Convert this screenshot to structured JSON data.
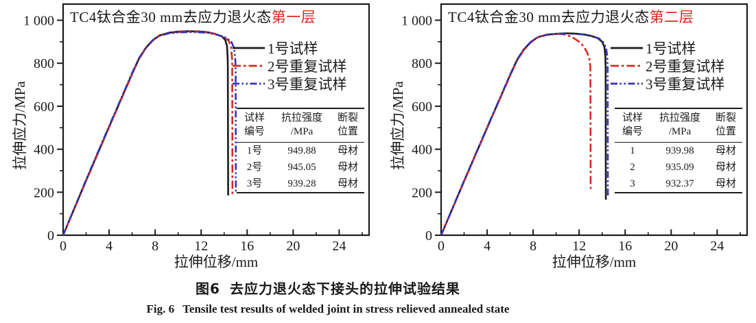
{
  "colors": {
    "axis_black": "#1a1a1a",
    "series_black": "#1a1a1a",
    "series_red": "#d8281e",
    "series_blue": "#3232b6",
    "title_accent_red": "#d8281e"
  },
  "charts": [
    {
      "title_black": "TC4钛合金30 mm去应力退火态",
      "title_red": "第一层",
      "xlabel": "拉伸位移/mm",
      "ylabel": "拉伸应力/MPa",
      "table": {
        "header": {
          "col_sample_l1": "试样",
          "col_sample_l2": "编号",
          "col_strength_l1": "抗拉强度",
          "col_strength_l2": "/MPa",
          "col_fracture_l1": "断裂",
          "col_fracture_l2": "位置"
        },
        "rows": [
          {
            "id": "1号",
            "strength": "949.88",
            "location": "母材"
          },
          {
            "id": "2号",
            "strength": "945.05",
            "location": "母材"
          },
          {
            "id": "3号",
            "strength": "939.28",
            "location": "母材"
          }
        ]
      }
    },
    {
      "title_black": "TC4钛合金30 mm去应力退火态",
      "title_red": "第二层",
      "xlabel": "拉伸位移/mm",
      "ylabel": "拉伸应力/MPa",
      "table": {
        "header": {
          "col_sample_l1": "试样",
          "col_sample_l2": "编号",
          "col_strength_l1": "抗拉强度",
          "col_strength_l2": "/MPa",
          "col_fracture_l1": "断裂",
          "col_fracture_l2": "位置"
        },
        "rows": [
          {
            "id": "1",
            "strength": "939.98",
            "location": "母材"
          },
          {
            "id": "2",
            "strength": "935.09",
            "location": "母材"
          },
          {
            "id": "3",
            "strength": "932.37",
            "location": "母材"
          }
        ]
      }
    }
  ],
  "chart_data": [
    {
      "type": "line",
      "title": "TC4钛合金30 mm去应力退火态第一层",
      "xlabel": "拉伸位移/mm",
      "ylabel": "拉伸应力/MPa",
      "xlim": [
        0,
        26.6
      ],
      "ylim": [
        0,
        1075
      ],
      "xticks": [
        0,
        4,
        8,
        12,
        16,
        20,
        24
      ],
      "yticks": [
        0,
        200,
        400,
        600,
        800,
        1000
      ],
      "ytick_labels": [
        "0",
        "200",
        "400",
        "600",
        "800",
        "1 000"
      ],
      "x_minor_step": 2,
      "y_minor_step": 100,
      "grid": false,
      "legend_position": "upper-right-inside",
      "series": [
        {
          "name": "1号试样",
          "color": "#1a1a1a",
          "dash": "solid",
          "points": [
            [
              0,
              0
            ],
            [
              2,
              255
            ],
            [
              4,
              505
            ],
            [
              5,
              628
            ],
            [
              6,
              752
            ],
            [
              6.6,
              822
            ],
            [
              7.2,
              872
            ],
            [
              7.8,
              908
            ],
            [
              8.4,
              930
            ],
            [
              9.2,
              942
            ],
            [
              10,
              947
            ],
            [
              10.9,
              949
            ],
            [
              11.8,
              948
            ],
            [
              12.6,
              944
            ],
            [
              13.2,
              937
            ],
            [
              13.8,
              925
            ],
            [
              14.1,
              908
            ],
            [
              14.25,
              880
            ],
            [
              14.3,
              830
            ],
            [
              14.32,
              790
            ],
            [
              14.35,
              185
            ]
          ]
        },
        {
          "name": "2号重复试样",
          "color": "#d8281e",
          "dash": "dash-dot",
          "points": [
            [
              0,
              0
            ],
            [
              2,
              252
            ],
            [
              4,
              502
            ],
            [
              5,
              625
            ],
            [
              6,
              749
            ],
            [
              6.6,
              820
            ],
            [
              7.2,
              870
            ],
            [
              7.8,
              906
            ],
            [
              8.4,
              928
            ],
            [
              9.2,
              940
            ],
            [
              10,
              945
            ],
            [
              10.9,
              947
            ],
            [
              11.8,
              946
            ],
            [
              12.6,
              943
            ],
            [
              13.2,
              936
            ],
            [
              13.9,
              924
            ],
            [
              14.4,
              905
            ],
            [
              14.6,
              875
            ],
            [
              14.68,
              830
            ],
            [
              14.7,
              790
            ],
            [
              14.72,
              190
            ]
          ]
        },
        {
          "name": "3号重复试样",
          "color": "#3232b6",
          "dash": "dash-dot-dot",
          "points": [
            [
              0,
              0
            ],
            [
              2,
              258
            ],
            [
              4,
              508
            ],
            [
              5,
              631
            ],
            [
              6,
              755
            ],
            [
              6.6,
              824
            ],
            [
              7.2,
              873
            ],
            [
              7.8,
              908
            ],
            [
              8.4,
              928
            ],
            [
              9.2,
              939
            ],
            [
              10,
              943
            ],
            [
              10.9,
              945
            ],
            [
              11.8,
              944
            ],
            [
              12.6,
              941
            ],
            [
              13.2,
              935
            ],
            [
              14,
              923
            ],
            [
              14.6,
              903
            ],
            [
              14.85,
              872
            ],
            [
              14.95,
              830
            ],
            [
              15.0,
              785
            ],
            [
              15.02,
              195
            ]
          ]
        }
      ],
      "table_values": {
        "1号": 949.88,
        "2号": 945.05,
        "3号": 939.28,
        "fracture_location": "母材"
      }
    },
    {
      "type": "line",
      "title": "TC4钛合金30 mm去应力退火态第二层",
      "xlabel": "拉伸位移/mm",
      "ylabel": "拉伸应力/MPa",
      "xlim": [
        0,
        26.6
      ],
      "ylim": [
        0,
        1075
      ],
      "xticks": [
        0,
        4,
        8,
        12,
        16,
        20,
        24
      ],
      "yticks": [
        0,
        200,
        400,
        600,
        800,
        1000
      ],
      "ytick_labels": [
        "0",
        "200",
        "400",
        "600",
        "800",
        "1 000"
      ],
      "x_minor_step": 2,
      "y_minor_step": 100,
      "grid": false,
      "legend_position": "upper-right-inside",
      "series": [
        {
          "name": "1号试样",
          "color": "#1a1a1a",
          "dash": "solid",
          "points": [
            [
              0,
              0
            ],
            [
              2,
              252
            ],
            [
              4,
              500
            ],
            [
              5,
              622
            ],
            [
              6,
              745
            ],
            [
              6.6,
              815
            ],
            [
              7.2,
              864
            ],
            [
              7.8,
              899
            ],
            [
              8.4,
              921
            ],
            [
              9.2,
              933
            ],
            [
              10,
              937
            ],
            [
              10.8,
              939
            ],
            [
              11.6,
              938
            ],
            [
              12.4,
              934
            ],
            [
              13,
              928
            ],
            [
              13.6,
              917
            ],
            [
              14,
              900
            ],
            [
              14.2,
              875
            ],
            [
              14.28,
              830
            ],
            [
              14.3,
              780
            ],
            [
              14.32,
              165
            ]
          ]
        },
        {
          "name": "2号重复试样",
          "color": "#d8281e",
          "dash": "dash-dot",
          "points": [
            [
              0,
              0
            ],
            [
              2,
              250
            ],
            [
              4,
              498
            ],
            [
              5,
              620
            ],
            [
              6,
              742
            ],
            [
              6.6,
              813
            ],
            [
              7.2,
              862
            ],
            [
              7.8,
              897
            ],
            [
              8.4,
              920
            ],
            [
              9.2,
              932
            ],
            [
              10,
              936
            ],
            [
              10.5,
              936
            ],
            [
              11,
              930
            ],
            [
              11.5,
              918
            ],
            [
              12,
              900
            ],
            [
              12.4,
              878
            ],
            [
              12.7,
              850
            ],
            [
              12.9,
              818
            ],
            [
              12.98,
              780
            ],
            [
              13.0,
              215
            ]
          ]
        },
        {
          "name": "3号重复试样",
          "color": "#3232b6",
          "dash": "dash-dot-dot",
          "points": [
            [
              0,
              0
            ],
            [
              2,
              254
            ],
            [
              4,
              502
            ],
            [
              5,
              624
            ],
            [
              6,
              747
            ],
            [
              6.6,
              817
            ],
            [
              7.2,
              866
            ],
            [
              7.8,
              900
            ],
            [
              8.4,
              921
            ],
            [
              9.2,
              932
            ],
            [
              10,
              936
            ],
            [
              10.8,
              938
            ],
            [
              11.6,
              937
            ],
            [
              12.4,
              933
            ],
            [
              13,
              927
            ],
            [
              13.7,
              916
            ],
            [
              14.1,
              898
            ],
            [
              14.35,
              870
            ],
            [
              14.45,
              828
            ],
            [
              14.48,
              775
            ],
            [
              14.5,
              178
            ]
          ]
        }
      ],
      "table_values": {
        "1": 939.98,
        "2": 935.09,
        "3": 932.37,
        "fracture_location": "母材"
      }
    }
  ],
  "caption": {
    "zh_label": "图6",
    "zh_text": "去应力退火态下接头的拉伸试验结果",
    "en_label": "Fig. 6",
    "en_text": "Tensile test results of welded joint in stress relieved annealed state"
  }
}
